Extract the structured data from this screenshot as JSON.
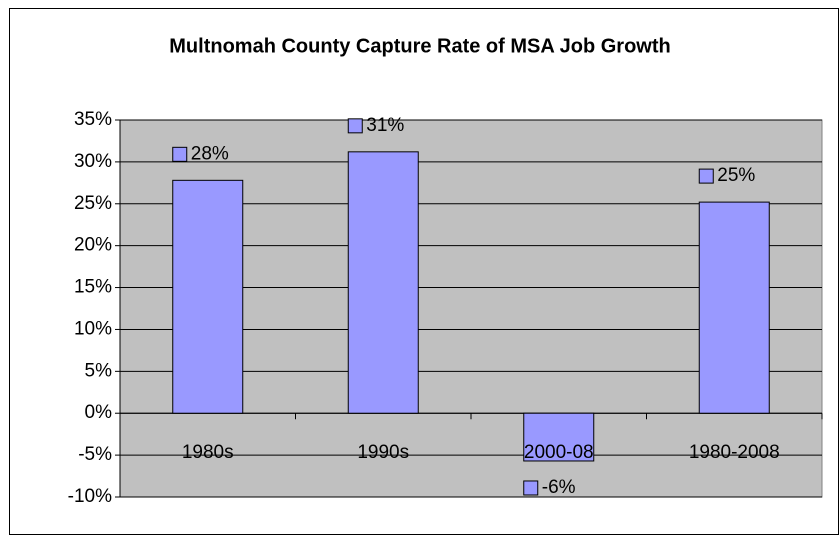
{
  "chart_data": {
    "type": "bar",
    "title": "Multnomah County Capture Rate of MSA Job Growth",
    "categories": [
      "1980s",
      "1990s",
      "2000-08",
      "1980-2008"
    ],
    "values": [
      27.8,
      31.2,
      -5.7,
      25.2
    ],
    "value_labels": [
      "28%",
      "31%",
      "-6%",
      "25%"
    ],
    "color": "#9999ff",
    "ylim": [
      -10,
      35
    ],
    "yticks": [
      {
        "value": -10,
        "label": "-10%"
      },
      {
        "value": -5,
        "label": "-5%"
      },
      {
        "value": 0,
        "label": "0%"
      },
      {
        "value": 5,
        "label": "5%"
      },
      {
        "value": 10,
        "label": "10%"
      },
      {
        "value": 15,
        "label": "15%"
      },
      {
        "value": 20,
        "label": "20%"
      },
      {
        "value": 25,
        "label": "25%"
      },
      {
        "value": 30,
        "label": "30%"
      },
      {
        "value": 35,
        "label": "35%"
      }
    ],
    "grid": true
  }
}
